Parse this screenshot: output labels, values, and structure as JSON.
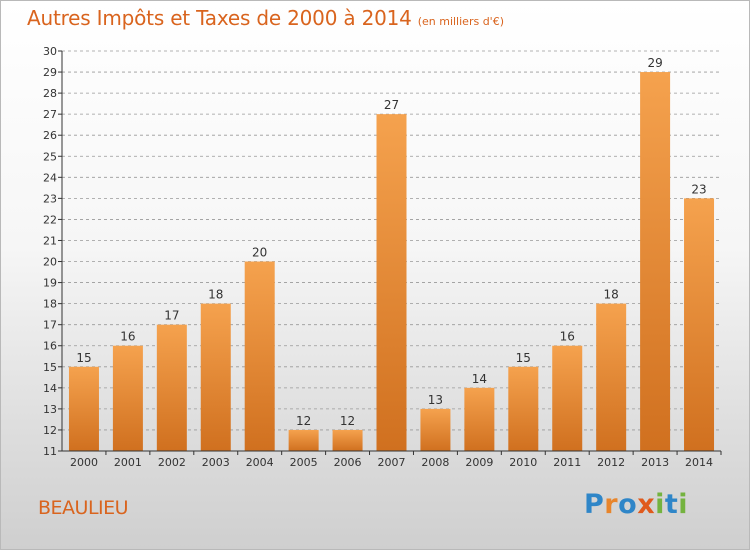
{
  "title": "Autres Impôts et Taxes de 2000 à 2014",
  "subtitle": "(en milliers d'€)",
  "location": "BEAULIEU",
  "logo": {
    "text": "Proxiti",
    "letters": [
      {
        "char": "P",
        "color": "#2f86c8"
      },
      {
        "char": "r",
        "color": "#e8852b"
      },
      {
        "char": "o",
        "color": "#2f86c8"
      },
      {
        "char": "x",
        "color": "#e05a1c"
      },
      {
        "char": "i",
        "color": "#74b33f"
      },
      {
        "char": "t",
        "color": "#2f86c8"
      },
      {
        "char": "i",
        "color": "#74b33f"
      }
    ]
  },
  "colors": {
    "accent": "#d9641e",
    "bar_light": "#f5a24e",
    "bar_dark": "#d0701f",
    "axis": "#333333",
    "grid": "#999999"
  },
  "chart_data": {
    "type": "bar",
    "title": "Autres Impôts et Taxes de 2000 à 2014",
    "subtitle": "(en milliers d'€)",
    "categories": [
      "2000",
      "2001",
      "2002",
      "2003",
      "2004",
      "2005",
      "2006",
      "2007",
      "2008",
      "2009",
      "2010",
      "2011",
      "2012",
      "2013",
      "2014"
    ],
    "values": [
      15,
      16,
      17,
      18,
      20,
      12,
      12,
      27,
      13,
      14,
      15,
      16,
      18,
      29,
      23
    ],
    "ylim": [
      11,
      30
    ],
    "yticks": [
      11,
      12,
      13,
      14,
      15,
      16,
      17,
      18,
      19,
      20,
      21,
      22,
      23,
      24,
      25,
      26,
      27,
      28,
      29,
      30
    ],
    "grid": true,
    "xlabel": "",
    "ylabel": ""
  }
}
